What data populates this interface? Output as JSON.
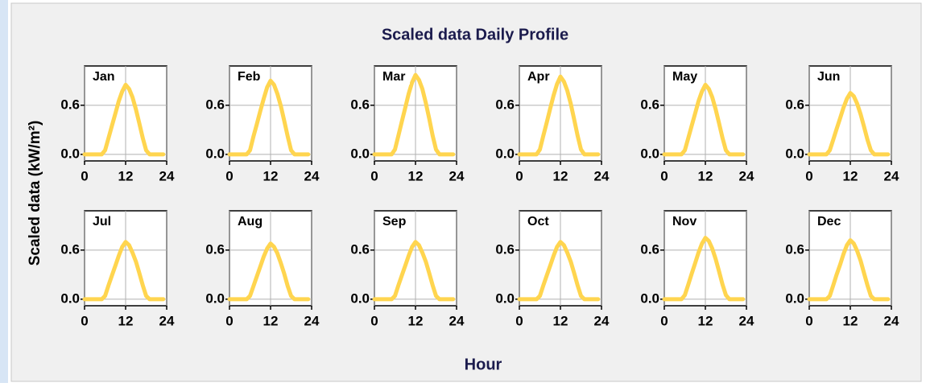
{
  "title": "Scaled data Daily Profile",
  "ylabel": "Scaled data (kW/m²)",
  "xlabel": "Hour",
  "chart_data": [
    {
      "type": "line",
      "title": "Jan",
      "color": "#ffd54f",
      "x": [
        0,
        1,
        2,
        3,
        4,
        5,
        6,
        7,
        8,
        9,
        10,
        11,
        12,
        13,
        14,
        15,
        16,
        17,
        18,
        19,
        20,
        21,
        22,
        23
      ],
      "values": [
        0,
        0,
        0,
        0,
        0,
        0,
        0.05,
        0.2,
        0.35,
        0.5,
        0.65,
        0.77,
        0.85,
        0.8,
        0.7,
        0.55,
        0.38,
        0.2,
        0.05,
        0,
        0,
        0,
        0,
        0
      ],
      "xlim": [
        0,
        24
      ],
      "xticks": [
        0,
        12,
        24
      ],
      "ylim": [
        -0.08,
        1.08
      ],
      "yticks": [
        {
          "value": 0,
          "label": "0.0"
        },
        0.6
      ],
      "grid": true
    },
    {
      "type": "line",
      "title": "Feb",
      "color": "#ffd54f",
      "x": [
        0,
        1,
        2,
        3,
        4,
        5,
        6,
        7,
        8,
        9,
        10,
        11,
        12,
        13,
        14,
        15,
        16,
        17,
        18,
        19,
        20,
        21,
        22,
        23
      ],
      "values": [
        0,
        0,
        0,
        0,
        0,
        0,
        0.05,
        0.22,
        0.37,
        0.53,
        0.68,
        0.82,
        0.9,
        0.85,
        0.74,
        0.59,
        0.41,
        0.22,
        0.05,
        0,
        0,
        0,
        0,
        0
      ],
      "xlim": [
        0,
        24
      ],
      "xticks": [
        0,
        12,
        24
      ],
      "ylim": [
        -0.08,
        1.08
      ],
      "yticks": [
        {
          "value": 0,
          "label": "0.0"
        },
        0.6
      ],
      "grid": true
    },
    {
      "type": "line",
      "title": "Mar",
      "color": "#ffd54f",
      "x": [
        0,
        1,
        2,
        3,
        4,
        5,
        6,
        7,
        8,
        9,
        10,
        11,
        12,
        13,
        14,
        15,
        16,
        17,
        18,
        19,
        20,
        21,
        22,
        23
      ],
      "values": [
        0,
        0,
        0,
        0,
        0,
        0,
        0.06,
        0.23,
        0.4,
        0.57,
        0.74,
        0.88,
        0.97,
        0.91,
        0.8,
        0.63,
        0.44,
        0.23,
        0.06,
        0,
        0,
        0,
        0,
        0
      ],
      "xlim": [
        0,
        24
      ],
      "xticks": [
        0,
        12,
        24
      ],
      "ylim": [
        -0.08,
        1.08
      ],
      "yticks": [
        {
          "value": 0,
          "label": "0.0"
        },
        0.6
      ],
      "grid": true
    },
    {
      "type": "line",
      "title": "Apr",
      "color": "#ffd54f",
      "x": [
        0,
        1,
        2,
        3,
        4,
        5,
        6,
        7,
        8,
        9,
        10,
        11,
        12,
        13,
        14,
        15,
        16,
        17,
        18,
        19,
        20,
        21,
        22,
        23
      ],
      "values": [
        0,
        0,
        0,
        0,
        0,
        0,
        0.06,
        0.23,
        0.39,
        0.56,
        0.72,
        0.86,
        0.95,
        0.89,
        0.78,
        0.62,
        0.43,
        0.23,
        0.06,
        0,
        0,
        0,
        0,
        0
      ],
      "xlim": [
        0,
        24
      ],
      "xticks": [
        0,
        12,
        24
      ],
      "ylim": [
        -0.08,
        1.08
      ],
      "yticks": [
        {
          "value": 0,
          "label": "0.0"
        },
        0.6
      ],
      "grid": true
    },
    {
      "type": "line",
      "title": "May",
      "color": "#ffd54f",
      "x": [
        0,
        1,
        2,
        3,
        4,
        5,
        6,
        7,
        8,
        9,
        10,
        11,
        12,
        13,
        14,
        15,
        16,
        17,
        18,
        19,
        20,
        21,
        22,
        23
      ],
      "values": [
        0,
        0,
        0,
        0,
        0,
        0,
        0.05,
        0.2,
        0.35,
        0.5,
        0.65,
        0.77,
        0.85,
        0.8,
        0.7,
        0.55,
        0.38,
        0.2,
        0.05,
        0,
        0,
        0,
        0,
        0
      ],
      "xlim": [
        0,
        24
      ],
      "xticks": [
        0,
        12,
        24
      ],
      "ylim": [
        -0.08,
        1.08
      ],
      "yticks": [
        {
          "value": 0,
          "label": "0.0"
        },
        0.6
      ],
      "grid": true
    },
    {
      "type": "line",
      "title": "Jun",
      "color": "#ffd54f",
      "x": [
        0,
        1,
        2,
        3,
        4,
        5,
        6,
        7,
        8,
        9,
        10,
        11,
        12,
        13,
        14,
        15,
        16,
        17,
        18,
        19,
        20,
        21,
        22,
        23
      ],
      "values": [
        0,
        0,
        0,
        0,
        0,
        0,
        0.05,
        0.18,
        0.31,
        0.44,
        0.57,
        0.68,
        0.75,
        0.71,
        0.62,
        0.49,
        0.34,
        0.18,
        0.05,
        0,
        0,
        0,
        0,
        0
      ],
      "xlim": [
        0,
        24
      ],
      "xticks": [
        0,
        12,
        24
      ],
      "ylim": [
        -0.08,
        1.08
      ],
      "yticks": [
        {
          "value": 0,
          "label": "0.0"
        },
        0.6
      ],
      "grid": true
    },
    {
      "type": "line",
      "title": "Jul",
      "color": "#ffd54f",
      "x": [
        0,
        1,
        2,
        3,
        4,
        5,
        6,
        7,
        8,
        9,
        10,
        11,
        12,
        13,
        14,
        15,
        16,
        17,
        18,
        19,
        20,
        21,
        22,
        23
      ],
      "values": [
        0,
        0,
        0,
        0,
        0,
        0,
        0.04,
        0.17,
        0.29,
        0.41,
        0.53,
        0.64,
        0.7,
        0.66,
        0.57,
        0.46,
        0.32,
        0.17,
        0.04,
        0,
        0,
        0,
        0,
        0
      ],
      "xlim": [
        0,
        24
      ],
      "xticks": [
        0,
        12,
        24
      ],
      "ylim": [
        -0.08,
        1.08
      ],
      "yticks": [
        {
          "value": 0,
          "label": "0.0"
        },
        0.6
      ],
      "grid": true
    },
    {
      "type": "line",
      "title": "Aug",
      "color": "#ffd54f",
      "x": [
        0,
        1,
        2,
        3,
        4,
        5,
        6,
        7,
        8,
        9,
        10,
        11,
        12,
        13,
        14,
        15,
        16,
        17,
        18,
        19,
        20,
        21,
        22,
        23
      ],
      "values": [
        0,
        0,
        0,
        0,
        0,
        0,
        0.04,
        0.16,
        0.28,
        0.4,
        0.52,
        0.62,
        0.68,
        0.64,
        0.56,
        0.44,
        0.31,
        0.16,
        0.04,
        0,
        0,
        0,
        0,
        0
      ],
      "xlim": [
        0,
        24
      ],
      "xticks": [
        0,
        12,
        24
      ],
      "ylim": [
        -0.08,
        1.08
      ],
      "yticks": [
        {
          "value": 0,
          "label": "0.0"
        },
        0.6
      ],
      "grid": true
    },
    {
      "type": "line",
      "title": "Sep",
      "color": "#ffd54f",
      "x": [
        0,
        1,
        2,
        3,
        4,
        5,
        6,
        7,
        8,
        9,
        10,
        11,
        12,
        13,
        14,
        15,
        16,
        17,
        18,
        19,
        20,
        21,
        22,
        23
      ],
      "values": [
        0,
        0,
        0,
        0,
        0,
        0,
        0.04,
        0.17,
        0.29,
        0.41,
        0.53,
        0.64,
        0.7,
        0.66,
        0.57,
        0.46,
        0.32,
        0.17,
        0.04,
        0,
        0,
        0,
        0,
        0
      ],
      "xlim": [
        0,
        24
      ],
      "xticks": [
        0,
        12,
        24
      ],
      "ylim": [
        -0.08,
        1.08
      ],
      "yticks": [
        {
          "value": 0,
          "label": "0.0"
        },
        0.6
      ],
      "grid": true
    },
    {
      "type": "line",
      "title": "Oct",
      "color": "#ffd54f",
      "x": [
        0,
        1,
        2,
        3,
        4,
        5,
        6,
        7,
        8,
        9,
        10,
        11,
        12,
        13,
        14,
        15,
        16,
        17,
        18,
        19,
        20,
        21,
        22,
        23
      ],
      "values": [
        0,
        0,
        0,
        0,
        0,
        0,
        0.04,
        0.17,
        0.29,
        0.41,
        0.53,
        0.64,
        0.7,
        0.66,
        0.57,
        0.46,
        0.32,
        0.17,
        0.04,
        0,
        0,
        0,
        0,
        0
      ],
      "xlim": [
        0,
        24
      ],
      "xticks": [
        0,
        12,
        24
      ],
      "ylim": [
        -0.08,
        1.08
      ],
      "yticks": [
        {
          "value": 0,
          "label": "0.0"
        },
        0.6
      ],
      "grid": true
    },
    {
      "type": "line",
      "title": "Nov",
      "color": "#ffd54f",
      "x": [
        0,
        1,
        2,
        3,
        4,
        5,
        6,
        7,
        8,
        9,
        10,
        11,
        12,
        13,
        14,
        15,
        16,
        17,
        18,
        19,
        20,
        21,
        22,
        23
      ],
      "values": [
        0,
        0,
        0,
        0,
        0,
        0,
        0.05,
        0.18,
        0.31,
        0.44,
        0.57,
        0.68,
        0.75,
        0.71,
        0.62,
        0.49,
        0.34,
        0.18,
        0.05,
        0,
        0,
        0,
        0,
        0
      ],
      "xlim": [
        0,
        24
      ],
      "xticks": [
        0,
        12,
        24
      ],
      "ylim": [
        -0.08,
        1.08
      ],
      "yticks": [
        {
          "value": 0,
          "label": "0.0"
        },
        0.6
      ],
      "grid": true
    },
    {
      "type": "line",
      "title": "Dec",
      "color": "#ffd54f",
      "x": [
        0,
        1,
        2,
        3,
        4,
        5,
        6,
        7,
        8,
        9,
        10,
        11,
        12,
        13,
        14,
        15,
        16,
        17,
        18,
        19,
        20,
        21,
        22,
        23
      ],
      "values": [
        0,
        0,
        0,
        0,
        0,
        0,
        0.04,
        0.17,
        0.3,
        0.42,
        0.55,
        0.66,
        0.72,
        0.68,
        0.59,
        0.47,
        0.32,
        0.17,
        0.04,
        0,
        0,
        0,
        0,
        0
      ],
      "xlim": [
        0,
        24
      ],
      "xticks": [
        0,
        12,
        24
      ],
      "ylim": [
        -0.08,
        1.08
      ],
      "yticks": [
        {
          "value": 0,
          "label": "0.0"
        },
        0.6
      ],
      "grid": true
    }
  ]
}
